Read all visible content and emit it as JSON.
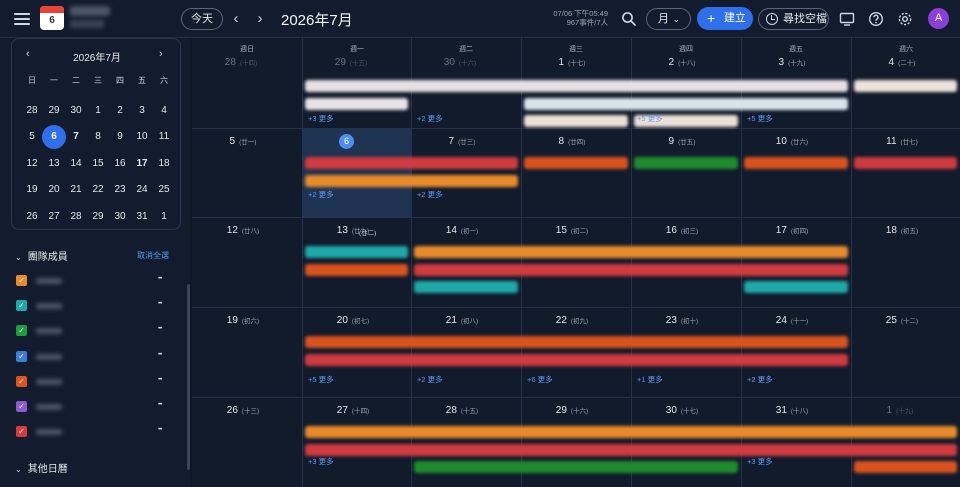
{
  "header": {
    "menu_icon": "hamburger-icon",
    "logo_day": "6",
    "today_label": "今天",
    "month_title": "2026年7月",
    "status_line1": "07/06 下午05:49",
    "status_line2": "967事件/7人",
    "view_label": "月",
    "create_label": "建立",
    "find_label": "尋找空檔",
    "avatar_letter": "A"
  },
  "mini_calendar": {
    "title": "2026年7月",
    "weekdays": [
      "日",
      "一",
      "二",
      "三",
      "四",
      "五",
      "六"
    ],
    "weeks": [
      [
        "28",
        "29",
        "30",
        "1",
        "2",
        "3",
        "4"
      ],
      [
        "5",
        "6",
        "7",
        "8",
        "9",
        "10",
        "11"
      ],
      [
        "12",
        "13",
        "14",
        "15",
        "16",
        "17",
        "18"
      ],
      [
        "19",
        "20",
        "21",
        "22",
        "23",
        "24",
        "25"
      ],
      [
        "26",
        "27",
        "28",
        "29",
        "30",
        "31",
        "1"
      ]
    ],
    "today": "6"
  },
  "sidebar": {
    "team_title": "團隊成員",
    "clear_all": "取消全選",
    "members": [
      {
        "color": "#e88b2a"
      },
      {
        "color": "#1fa8a8"
      },
      {
        "color": "#1f9d3a"
      },
      {
        "color": "#3b7dd8"
      },
      {
        "color": "#e0531c"
      },
      {
        "color": "#8d5bd1"
      },
      {
        "color": "#d83b3b"
      }
    ],
    "other_title": "其他日曆"
  },
  "month": {
    "weekdays": [
      "週日",
      "週一",
      "週二",
      "週三",
      "週四",
      "週五",
      "週六"
    ],
    "weeks": [
      [
        {
          "d": "28",
          "l": "十四",
          "dim": true
        },
        {
          "d": "29",
          "l": "十五",
          "dim": true
        },
        {
          "d": "30",
          "l": "十六",
          "dim": true
        },
        {
          "d": "1",
          "l": "十七"
        },
        {
          "d": "2",
          "l": "十八"
        },
        {
          "d": "3",
          "l": "十九"
        },
        {
          "d": "4",
          "l": "二十"
        }
      ],
      [
        {
          "d": "5",
          "l": "廿一"
        },
        {
          "d": "6",
          "l": "廿二",
          "today": true
        },
        {
          "d": "7",
          "l": "廿三"
        },
        {
          "d": "8",
          "l": "廿四"
        },
        {
          "d": "9",
          "l": "廿五"
        },
        {
          "d": "10",
          "l": "廿六"
        },
        {
          "d": "11",
          "l": "廿七"
        }
      ],
      [
        {
          "d": "12",
          "l": "廿八"
        },
        {
          "d": "13",
          "l": "廿九"
        },
        {
          "d": "14",
          "l": "初一"
        },
        {
          "d": "15",
          "l": "初二"
        },
        {
          "d": "16",
          "l": "初三"
        },
        {
          "d": "17",
          "l": "初四"
        },
        {
          "d": "18",
          "l": "初五"
        }
      ],
      [
        {
          "d": "19",
          "l": "初六"
        },
        {
          "d": "20",
          "l": "初七"
        },
        {
          "d": "21",
          "l": "初八"
        },
        {
          "d": "22",
          "l": "初九"
        },
        {
          "d": "23",
          "l": "初十"
        },
        {
          "d": "24",
          "l": "十一"
        },
        {
          "d": "25",
          "l": "十二"
        }
      ],
      [
        {
          "d": "26",
          "l": "十三"
        },
        {
          "d": "27",
          "l": "十四"
        },
        {
          "d": "28",
          "l": "十五"
        },
        {
          "d": "29",
          "l": "十六"
        },
        {
          "d": "30",
          "l": "十七"
        },
        {
          "d": "31",
          "l": "十八"
        },
        {
          "d": "1",
          "l": "十九",
          "dim": true
        }
      ]
    ],
    "more_links": [
      {
        "w": 0,
        "c": 1,
        "t": "+3 更多"
      },
      {
        "w": 0,
        "c": 2,
        "t": "+2 更多"
      },
      {
        "w": 0,
        "c": 4,
        "t": "+5 更多"
      },
      {
        "w": 0,
        "c": 5,
        "t": "+5 更多"
      },
      {
        "w": 1,
        "c": 1,
        "t": "+2 更多"
      },
      {
        "w": 1,
        "c": 2,
        "t": "+2 更多"
      },
      {
        "w": 3,
        "c": 1,
        "t": "+5 更多"
      },
      {
        "w": 3,
        "c": 2,
        "t": "+2 更多"
      },
      {
        "w": 3,
        "c": 3,
        "t": "+6 更多"
      },
      {
        "w": 3,
        "c": 4,
        "t": "+1 更多"
      },
      {
        "w": 3,
        "c": 5,
        "t": "+2 更多"
      },
      {
        "w": 4,
        "c": 1,
        "t": "+3 更多"
      },
      {
        "w": 4,
        "c": 5,
        "t": "+3 更多"
      }
    ]
  },
  "colors": {
    "accent": "#2f6fe9",
    "orange": "#e88b2a",
    "red": "#cf3b3f",
    "red_orange": "#d9531e",
    "teal": "#1fa8a8",
    "green": "#1f8a2e",
    "pale": "#e8dcd8"
  }
}
